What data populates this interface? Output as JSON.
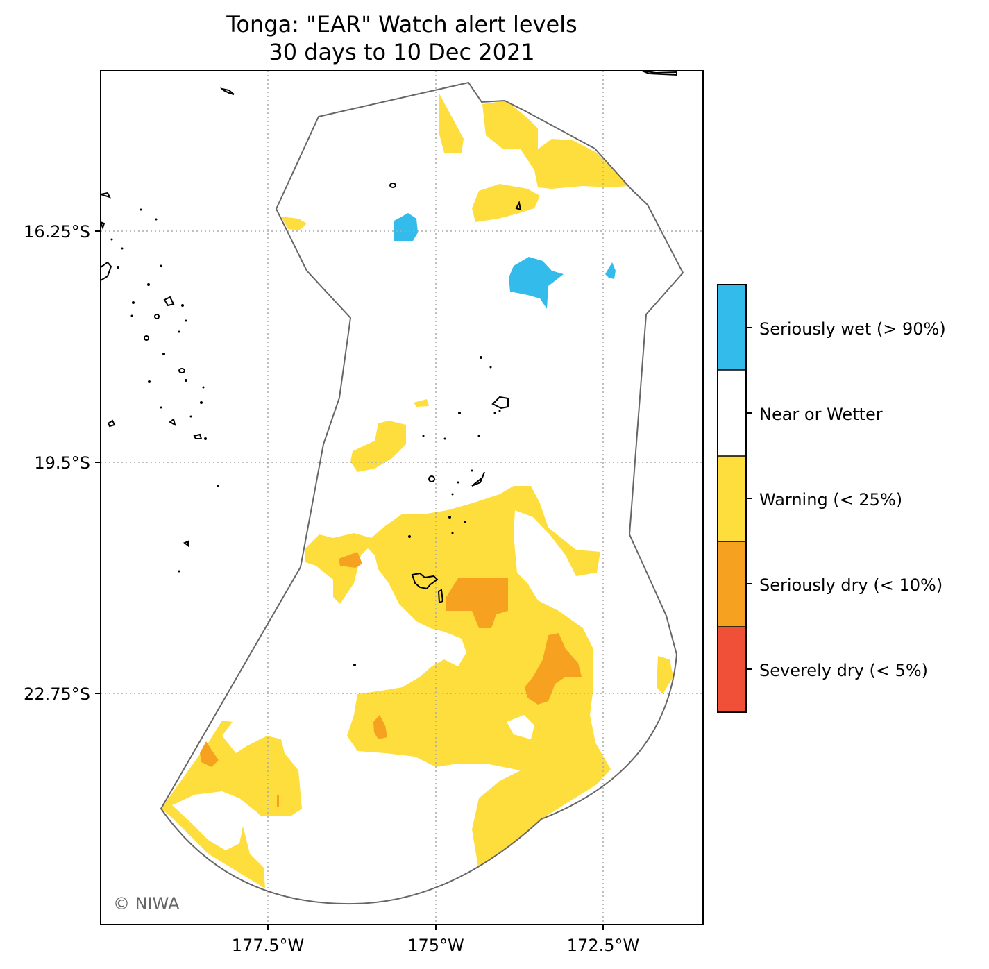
{
  "title_line1": "Tonga: \"EAR\" Watch alert levels",
  "title_line2": "30 days to 10 Dec 2021",
  "y_ticks": [
    "16.25°S",
    "19.5°S",
    "22.75°S"
  ],
  "x_ticks": [
    "177.5°W",
    "175°W",
    "172.5°W"
  ],
  "credit": "© NIWA",
  "legend": [
    {
      "label": "Seriously wet (> 90%)",
      "color": "#33bbeb"
    },
    {
      "label": "Near or Wetter",
      "color": "#ffffff"
    },
    {
      "label": "Warning (< 25%)",
      "color": "#fede3c"
    },
    {
      "label": "Seriously dry (< 10%)",
      "color": "#f7a120"
    },
    {
      "label": "Severely dry (< 5%)",
      "color": "#ef5037"
    }
  ],
  "colors": {
    "wet": "#33bbeb",
    "warning": "#fede3c",
    "dry": "#f7a120",
    "severe": "#ef5037",
    "boundary": "#666666",
    "grid": "#aaaaaa"
  }
}
